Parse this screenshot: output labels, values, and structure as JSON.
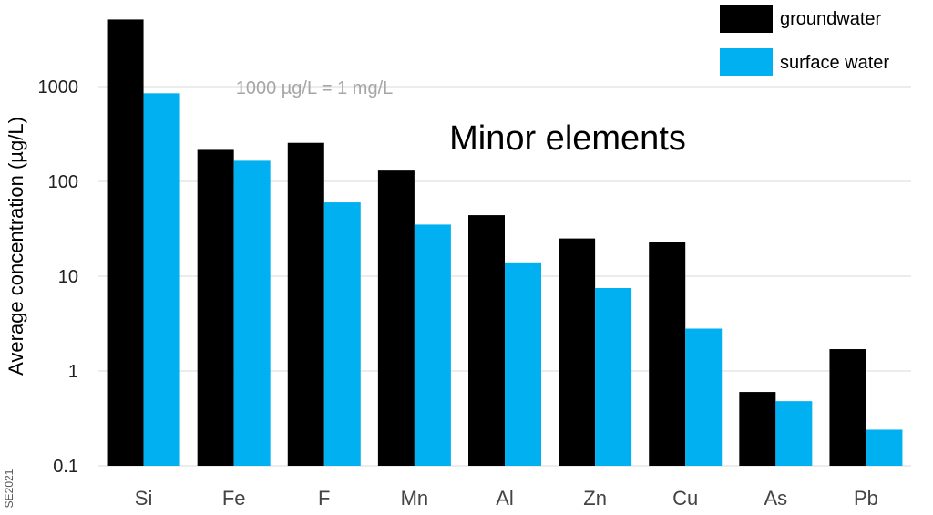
{
  "chart_data": {
    "type": "bar",
    "title": "Minor elements",
    "ylabel": "Average concentration (µg/L)",
    "xlabel": "",
    "yscale": "log",
    "ylim": [
      0.1,
      5000
    ],
    "yticks": [
      "0.1",
      "1",
      "10",
      "100",
      "1000"
    ],
    "grid": true,
    "legend_position": "top-right",
    "categories": [
      "Si",
      "Fe",
      "F",
      "Mn",
      "Al",
      "Zn",
      "Cu",
      "As",
      "Pb"
    ],
    "series": [
      {
        "name": "groundwater",
        "color": "#000000",
        "values": [
          5100,
          215,
          255,
          130,
          44,
          25,
          23,
          0.6,
          1.7
        ]
      },
      {
        "name": "surface water",
        "color": "#00b0f0",
        "values": [
          850,
          165,
          60,
          35,
          14,
          7.5,
          2.8,
          0.48,
          0.24
        ]
      }
    ],
    "annotation": "1000 µg/L = 1 mg/L",
    "credit": "SE2021"
  }
}
